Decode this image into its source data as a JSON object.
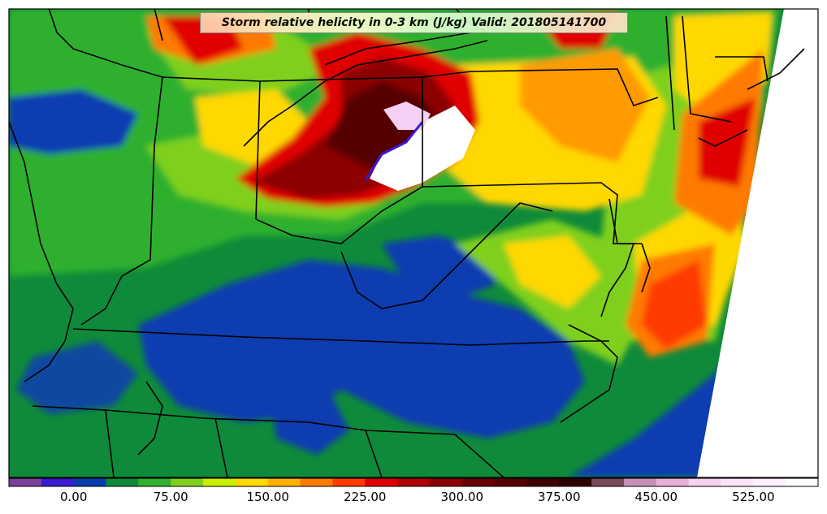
{
  "title": "Storm relative helicity in 0-3 km (J/kg) Valid: 201805141700",
  "colorbar": {
    "colors": [
      "#7b3f9a",
      "#3a1ad0",
      "#0a3cb0",
      "#0f8a3a",
      "#2fb02f",
      "#7fd01a",
      "#c8f000",
      "#ffd800",
      "#ffb000",
      "#ff7a00",
      "#ff3a00",
      "#e00000",
      "#b00000",
      "#8c0000",
      "#6a0000",
      "#550000",
      "#420000",
      "#2e0000",
      "#7a4a5a",
      "#c890b8",
      "#e8b0d8",
      "#f8d0f0",
      "#fce4f8",
      "#fff0ff",
      "#ffffff"
    ],
    "tick_labels": [
      "0.00",
      "75.00",
      "150.00",
      "225.00",
      "300.00",
      "375.00",
      "450.00",
      "525.00"
    ]
  },
  "map_legend_colors": {
    "very_low": "#0a3cb0",
    "low": "#0f8a3a",
    "moderate": "#7fd01a",
    "elevated": "#ffd800",
    "high": "#ff7a00",
    "very_high": "#e00000",
    "extreme": "#6a0000",
    "max": "#ffffff"
  }
}
